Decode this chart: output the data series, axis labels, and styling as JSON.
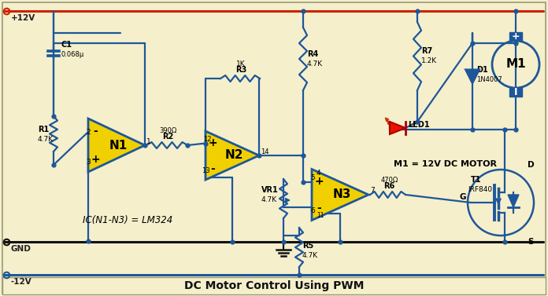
{
  "bg_color": "#f5efcc",
  "wire_color": "#1e5799",
  "red_wire": "#cc2200",
  "black_wire": "#111111",
  "op_amp_fill": "#f0d000",
  "op_amp_edge": "#1e5799",
  "mosfet_fill": "none",
  "mosfet_edge": "#1e5799",
  "title": "DC Motor Control Using PWM",
  "motor_label": "M1 = 12V DC MOTOR",
  "ic_label": "IC(N1-N3) = LM324",
  "border_color": "#999977",
  "red_led": "#ee1100",
  "diode_fill": "#1e5799"
}
